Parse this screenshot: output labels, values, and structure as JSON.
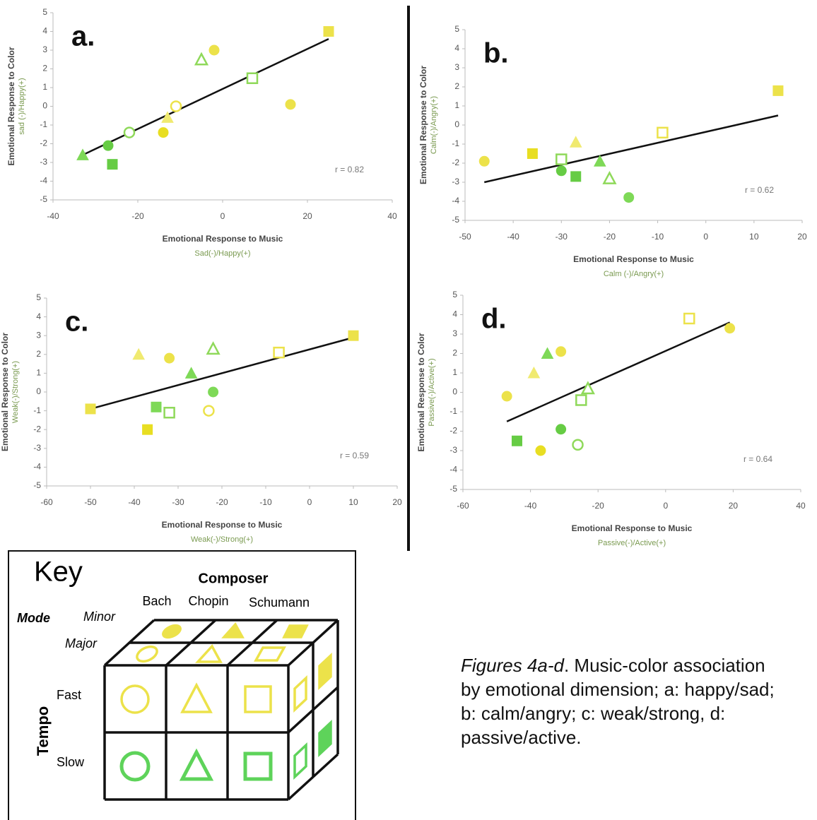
{
  "chart_data": [
    {
      "type": "scatter",
      "panel": "a.",
      "xlabel": "Emotional Response to Music",
      "xlabel_sub": "Sad(-)/Happy(+)",
      "ylabel": "Emotional Response to Color",
      "ylabel_sub": "sad (-)/Happy(+)",
      "annotation": "r = 0.82",
      "xlim": [
        -40,
        40
      ],
      "xticks": [
        -40,
        -20,
        0,
        20,
        40
      ],
      "ylim": [
        -5,
        5
      ],
      "yticks": [
        -5,
        -4,
        -3,
        -2,
        -1,
        0,
        1,
        2,
        3,
        4,
        5
      ],
      "x": [
        -33,
        -27,
        -26,
        -22,
        -14,
        -13,
        -11,
        -5,
        -2,
        7,
        16,
        25
      ],
      "values": [
        -2.6,
        -2.1,
        -3.1,
        -1.4,
        -1.4,
        -0.6,
        0,
        2.5,
        3,
        1.5,
        0.1,
        4
      ],
      "markers": [
        "triangle",
        "circle",
        "square",
        "circle",
        "circle",
        "triangle",
        "circle",
        "triangle",
        "circle",
        "square",
        "circle",
        "square"
      ],
      "filled": [
        true,
        true,
        true,
        false,
        true,
        true,
        false,
        false,
        true,
        false,
        true,
        true
      ],
      "colors": [
        "#7ed957",
        "#66cc44",
        "#66cc44",
        "#8fd95a",
        "#e8de22",
        "#f0ea70",
        "#ece24a",
        "#8fd95a",
        "#ece24a",
        "#8fd95a",
        "#ece24a",
        "#ece24a"
      ],
      "trend": {
        "x": [
          -33,
          25
        ],
        "values": [
          -2.6,
          3.6
        ]
      }
    },
    {
      "type": "scatter",
      "panel": "b.",
      "xlabel": "Emotional Response to Music",
      "xlabel_sub": "Calm (-)/Angry(+)",
      "ylabel": "Emotional Response to Color",
      "ylabel_sub": "Calm(-)/Angry(+)",
      "annotation": "r = 0.62",
      "xlim": [
        -50,
        20
      ],
      "xticks": [
        -50,
        -40,
        -30,
        -20,
        -10,
        0,
        10,
        20
      ],
      "ylim": [
        -5,
        5
      ],
      "yticks": [
        -5,
        -4,
        -3,
        -2,
        -1,
        0,
        1,
        2,
        3,
        4,
        5
      ],
      "x": [
        -46,
        -36,
        -30,
        -30,
        -27,
        -27,
        -22,
        -20,
        -16,
        -9,
        15
      ],
      "values": [
        -1.9,
        -1.5,
        -1.8,
        -2.4,
        -2.7,
        -0.9,
        -1.9,
        -2.8,
        -3.8,
        -0.4,
        1.8
      ],
      "markers": [
        "circle",
        "square",
        "square",
        "circle",
        "square",
        "triangle",
        "triangle",
        "triangle",
        "circle",
        "square",
        "square"
      ],
      "filled": [
        true,
        true,
        false,
        true,
        true,
        true,
        true,
        false,
        true,
        false,
        true
      ],
      "colors": [
        "#ece24a",
        "#e8de22",
        "#8fd95a",
        "#66cc44",
        "#66cc44",
        "#f0ea70",
        "#7ed957",
        "#8fd95a",
        "#7ed957",
        "#ece24a",
        "#ece24a"
      ],
      "trend": {
        "x": [
          -46,
          15
        ],
        "values": [
          -3,
          0.5
        ]
      }
    },
    {
      "type": "scatter",
      "panel": "c.",
      "xlabel": "Emotional Response to Music",
      "xlabel_sub": "Weak(-)/Strong(+)",
      "ylabel": "Emotional Response to Color",
      "ylabel_sub": "Weak(-)/Strong(+)",
      "annotation": "r = 0.59",
      "xlim": [
        -60,
        20
      ],
      "xticks": [
        -60,
        -50,
        -40,
        -30,
        -20,
        -10,
        0,
        10,
        20
      ],
      "ylim": [
        -5,
        5
      ],
      "yticks": [
        -5,
        -4,
        -3,
        -2,
        -1,
        0,
        1,
        2,
        3,
        4,
        5
      ],
      "x": [
        -50,
        -39,
        -37,
        -35,
        -32,
        -32,
        -27,
        -23,
        -22,
        -22,
        -7,
        10
      ],
      "values": [
        -0.9,
        2,
        -2,
        -0.8,
        1.8,
        -1.1,
        1,
        -1,
        2.3,
        0,
        2.1,
        3
      ],
      "markers": [
        "square",
        "triangle",
        "square",
        "square",
        "circle",
        "square",
        "triangle",
        "circle",
        "triangle",
        "circle",
        "square",
        "square"
      ],
      "filled": [
        true,
        true,
        true,
        true,
        true,
        false,
        true,
        false,
        false,
        true,
        false,
        true
      ],
      "colors": [
        "#ece24a",
        "#f0ea70",
        "#e8de22",
        "#7ed957",
        "#ece24a",
        "#8fd95a",
        "#7ed957",
        "#ece24a",
        "#8fd95a",
        "#7ed957",
        "#ece24a",
        "#ece24a"
      ],
      "trend": {
        "x": [
          -50,
          10
        ],
        "values": [
          -0.9,
          2.9
        ]
      }
    },
    {
      "type": "scatter",
      "panel": "d.",
      "xlabel": "Emotional Response to Music",
      "xlabel_sub": "Passive(-)/Active(+)",
      "ylabel": "Emotional Response to Color",
      "ylabel_sub": "Passive(-)/Active(+)",
      "annotation": "r = 0.64",
      "xlim": [
        -60,
        40
      ],
      "xticks": [
        -60,
        -40,
        -20,
        0,
        20,
        40
      ],
      "ylim": [
        -5,
        5
      ],
      "yticks": [
        -5,
        -4,
        -3,
        -2,
        -1,
        0,
        1,
        2,
        3,
        4,
        5
      ],
      "x": [
        -47,
        -44,
        -39,
        -37,
        -35,
        -31,
        -31,
        -26,
        -25,
        -23,
        7,
        19
      ],
      "values": [
        -0.2,
        -2.5,
        1,
        -3,
        2,
        2.1,
        -1.9,
        -2.7,
        -0.4,
        0.2,
        3.8,
        3.3
      ],
      "markers": [
        "circle",
        "square",
        "triangle",
        "circle",
        "triangle",
        "circle",
        "circle",
        "circle",
        "square",
        "triangle",
        "square",
        "circle"
      ],
      "filled": [
        true,
        true,
        true,
        true,
        true,
        true,
        true,
        false,
        false,
        false,
        false,
        true
      ],
      "colors": [
        "#ece24a",
        "#66cc44",
        "#f0ea70",
        "#e8de22",
        "#7ed957",
        "#ece24a",
        "#66cc44",
        "#8fd95a",
        "#8fd95a",
        "#8fd95a",
        "#ece24a",
        "#ece24a"
      ],
      "trend": {
        "x": [
          -47,
          19
        ],
        "values": [
          -1.5,
          3.6
        ]
      }
    }
  ],
  "key": {
    "title": "Key",
    "composer": "Composer",
    "composers": [
      "Bach",
      "Chopin",
      "Schumann"
    ],
    "mode": "Mode",
    "modes": [
      "Minor",
      "Major"
    ],
    "tempo": "Tempo",
    "tempos": [
      "Fast",
      "Slow"
    ]
  },
  "caption": {
    "figure_ref": "Figures 4a-d",
    "text": ". Music-color association by emotional dimension; a: happy/sad; b: calm/angry; c: weak/strong, d: passive/active."
  }
}
